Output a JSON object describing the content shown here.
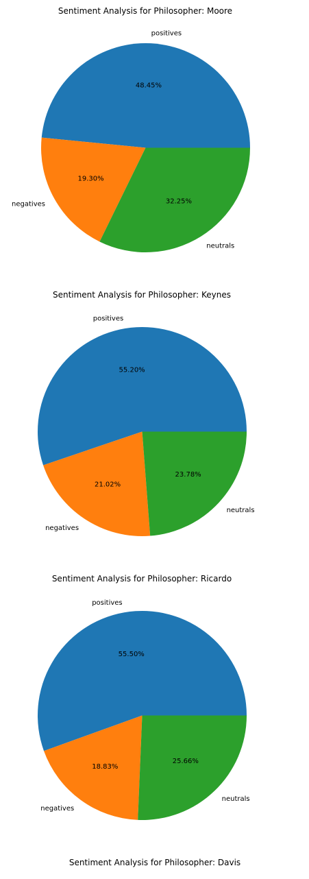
{
  "colors": {
    "positives": "#1f77b4",
    "negatives": "#ff7f0e",
    "neutrals": "#2ca02c",
    "background": "#ffffff"
  },
  "chart_data": [
    {
      "type": "pie",
      "title": "Sentiment Analysis for  Philosopher: Moore",
      "labels": [
        "positives",
        "negatives",
        "neutrals"
      ],
      "values": [
        48.45,
        19.3,
        32.25
      ],
      "value_labels": [
        "48.45%",
        "19.30%",
        "32.25%"
      ],
      "start_angle_deg": 0,
      "direction": "counterclockwise"
    },
    {
      "type": "pie",
      "title": "Sentiment Analysis for  Philosopher: Keynes",
      "labels": [
        "positives",
        "negatives",
        "neutrals"
      ],
      "values": [
        55.2,
        21.02,
        23.78
      ],
      "value_labels": [
        "55.20%",
        "21.02%",
        "23.78%"
      ],
      "start_angle_deg": 0,
      "direction": "counterclockwise"
    },
    {
      "type": "pie",
      "title": "Sentiment Analysis for  Philosopher: Ricardo",
      "labels": [
        "positives",
        "negatives",
        "neutrals"
      ],
      "values": [
        55.5,
        18.83,
        25.66
      ],
      "value_labels": [
        "55.50%",
        "18.83%",
        "25.66%"
      ],
      "start_angle_deg": 0,
      "direction": "counterclockwise"
    },
    {
      "type": "pie",
      "title": "Sentiment Analysis for  Philosopher: Davis",
      "labels": [],
      "values": [],
      "value_labels": []
    }
  ]
}
